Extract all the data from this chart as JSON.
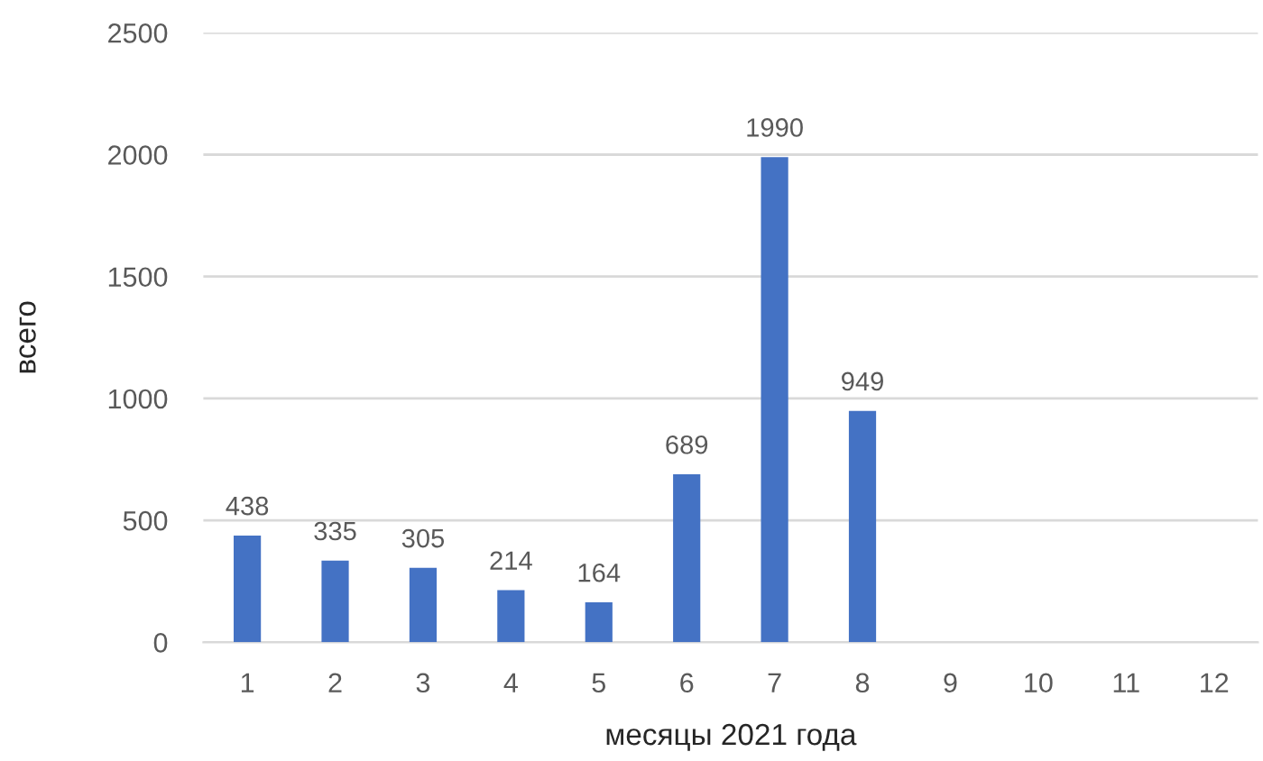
{
  "chart_data": {
    "type": "bar",
    "xlabel": "месяцы 2021 года",
    "ylabel": "всего",
    "categories": [
      "1",
      "2",
      "3",
      "4",
      "5",
      "6",
      "7",
      "8",
      "9",
      "10",
      "11",
      "12"
    ],
    "values": [
      438,
      335,
      305,
      214,
      164,
      689,
      1990,
      949,
      null,
      null,
      null,
      null
    ],
    "color": "#4472c4",
    "ylim": [
      0,
      2500
    ],
    "yticks": [
      0,
      500,
      1000,
      1500,
      2000,
      2500
    ],
    "grid": "y",
    "data_labels": true
  }
}
